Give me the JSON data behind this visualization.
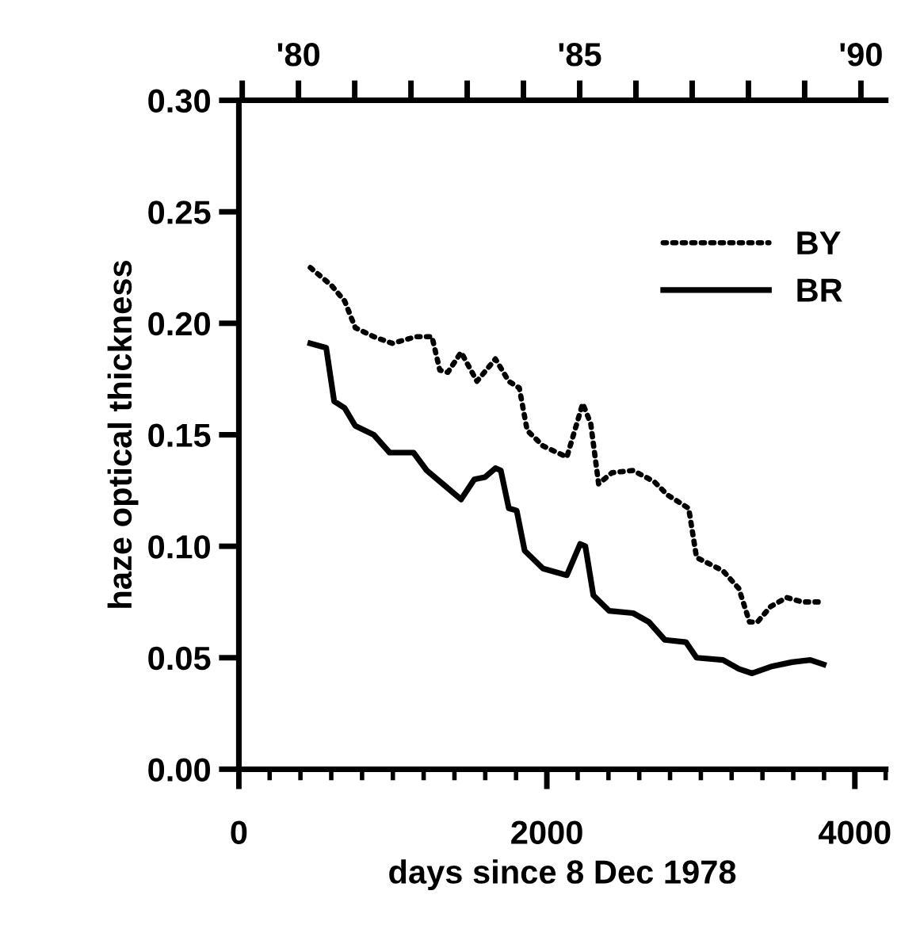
{
  "chart_data": {
    "type": "line",
    "xlabel": "days since 8 Dec 1978",
    "ylabel": "haze optical thickness",
    "xlim": [
      0,
      4200
    ],
    "xticks": [
      0,
      2000,
      4000
    ],
    "x2lim": [
      78.94,
      90.44
    ],
    "x2ticks": [
      {
        "value": 79,
        "label": null
      },
      {
        "value": 80,
        "label": "'80"
      },
      {
        "value": 81,
        "label": null
      },
      {
        "value": 82,
        "label": null
      },
      {
        "value": 83,
        "label": null
      },
      {
        "value": 84,
        "label": null
      },
      {
        "value": 85,
        "label": "'85"
      },
      {
        "value": 86,
        "label": null
      },
      {
        "value": 87,
        "label": null
      },
      {
        "value": 88,
        "label": null
      },
      {
        "value": 89,
        "label": null
      },
      {
        "value": 90,
        "label": "'90"
      }
    ],
    "ylim": [
      0,
      0.3
    ],
    "yticks": [
      {
        "value": 0,
        "label": "0.00"
      },
      {
        "value": 0.05,
        "label": "0.05"
      },
      {
        "value": 0.1,
        "label": "0.10"
      },
      {
        "value": 0.15,
        "label": "0.15"
      },
      {
        "value": 0.2,
        "label": "0.20"
      },
      {
        "value": 0.25,
        "label": "0.25"
      },
      {
        "value": 0.3,
        "label": "0.30"
      }
    ],
    "grid": false,
    "legend": "top right",
    "marker": "none",
    "series": [
      {
        "name": "BY",
        "color": "#000000",
        "line_style": "dotted",
        "x": [
          464,
          601,
          687,
          756,
          876,
          996,
          1151,
          1254,
          1305,
          1357,
          1443,
          1546,
          1666,
          1753,
          1821,
          1872,
          1975,
          2130,
          2233,
          2285,
          2336,
          2423,
          2560,
          2697,
          2784,
          2921,
          2972,
          3144,
          3247,
          3316,
          3367,
          3454,
          3557,
          3660,
          3779
        ],
        "values": [
          0.225,
          0.217,
          0.21,
          0.198,
          0.194,
          0.191,
          0.194,
          0.194,
          0.179,
          0.178,
          0.187,
          0.174,
          0.184,
          0.174,
          0.171,
          0.152,
          0.145,
          0.14,
          0.164,
          0.155,
          0.128,
          0.133,
          0.134,
          0.129,
          0.123,
          0.117,
          0.095,
          0.089,
          0.081,
          0.066,
          0.066,
          0.073,
          0.077,
          0.075,
          0.075
        ]
      },
      {
        "name": "BR",
        "color": "#000000",
        "line_style": "solid",
        "x": [
          464,
          567,
          619,
          687,
          756,
          876,
          979,
          1134,
          1220,
          1323,
          1443,
          1529,
          1598,
          1666,
          1701,
          1753,
          1804,
          1856,
          1975,
          2130,
          2216,
          2250,
          2302,
          2405,
          2560,
          2663,
          2766,
          2903,
          2972,
          3144,
          3247,
          3333,
          3454,
          3591,
          3711,
          3797
        ],
        "values": [
          0.191,
          0.189,
          0.165,
          0.162,
          0.154,
          0.15,
          0.142,
          0.142,
          0.134,
          0.128,
          0.121,
          0.13,
          0.131,
          0.135,
          0.134,
          0.117,
          0.116,
          0.098,
          0.09,
          0.087,
          0.101,
          0.1,
          0.078,
          0.071,
          0.07,
          0.066,
          0.058,
          0.057,
          0.05,
          0.049,
          0.045,
          0.043,
          0.046,
          0.048,
          0.049,
          0.047
        ]
      }
    ]
  }
}
